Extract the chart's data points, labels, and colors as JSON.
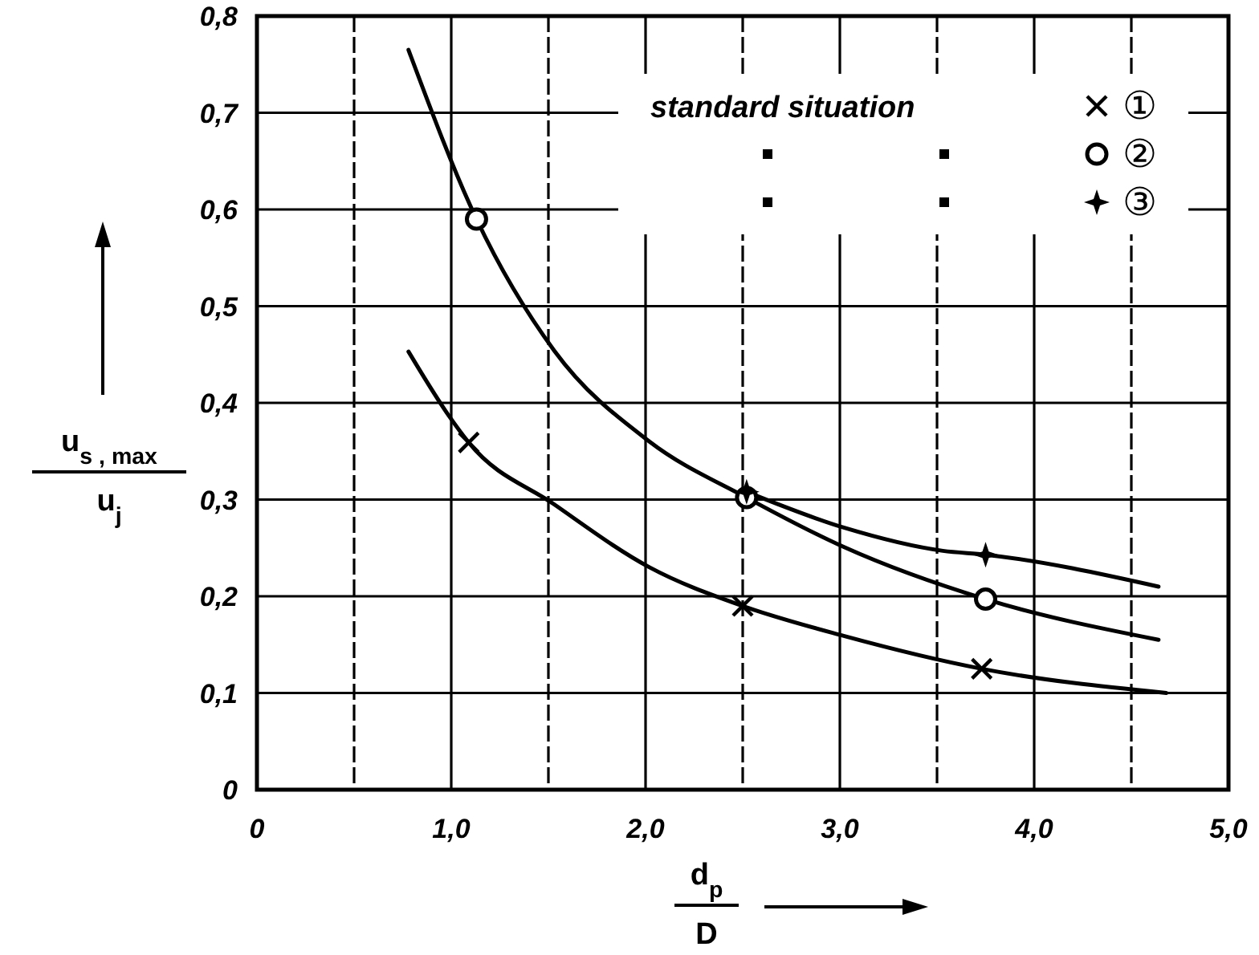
{
  "chart_data": {
    "type": "line",
    "xlabel": "d$_{p}$\nD",
    "ylabel": "u$_{s , max}$\nu$_{j}$",
    "xlim": [
      0,
      5
    ],
    "ylim": [
      0,
      0.8
    ],
    "xticks": [
      0,
      {
        "value": 0.5,
        "label": null
      },
      {
        "value": 1,
        "label": "1,0"
      },
      {
        "value": 1.5,
        "label": null
      },
      {
        "value": 2,
        "label": "2,0"
      },
      {
        "value": 2.5,
        "label": null
      },
      {
        "value": 3,
        "label": "3,0"
      },
      {
        "value": 3.5,
        "label": null
      },
      {
        "value": 4,
        "label": "4,0"
      },
      {
        "value": 4.5,
        "label": null
      },
      {
        "value": 5,
        "label": "5,0"
      }
    ],
    "yticks": [
      0,
      {
        "value": 0.1,
        "label": "0,1"
      },
      {
        "value": 0.2,
        "label": "0,2"
      },
      {
        "value": 0.3,
        "label": "0,3"
      },
      {
        "value": 0.4,
        "label": "0,4"
      },
      {
        "value": 0.5,
        "label": "0,5"
      },
      {
        "value": 0.6,
        "label": "0,6"
      },
      {
        "value": 0.7,
        "label": "0,7"
      },
      {
        "value": 0.8,
        "label": "0,8"
      }
    ],
    "grid": true,
    "legend": "top right",
    "marker": "none",
    "annotations": [
      "standard situation"
    ],
    "series": [
      {
        "type": "line",
        "color": "#000000",
        "x": [
          0.78,
          0.99,
          1.09,
          1.53,
          2.02,
          2.5,
          3.02,
          3.73,
          4.68
        ],
        "values": [
          0.453,
          0.386,
          0.359,
          0.295,
          0.23,
          0.19,
          0.159,
          0.125,
          0.1
        ]
      },
      {
        "type": "line",
        "color": "#000000",
        "x": [
          0.78,
          1.13,
          1.53,
          2.02,
          2.52,
          3.02,
          3.75,
          4.64
        ],
        "values": [
          0.765,
          0.59,
          0.454,
          0.36,
          0.302,
          0.251,
          0.197,
          0.155
        ]
      },
      {
        "type": "line",
        "color": "#000000",
        "x": [
          2.52,
          3.02,
          3.53,
          3.75,
          4.64
        ],
        "values": [
          0.308,
          0.271,
          0.247,
          0.243,
          0.21
        ]
      },
      {
        "type": "scatter",
        "name": "①",
        "marker": "cross",
        "color": "#000000",
        "x": [
          1.09,
          2.5,
          3.73
        ],
        "values": [
          0.359,
          0.19,
          0.125
        ]
      },
      {
        "type": "scatter",
        "name": "②",
        "marker": "circle",
        "color": "#000000",
        "x": [
          1.13,
          2.52,
          3.75
        ],
        "values": [
          0.59,
          0.302,
          0.197
        ]
      },
      {
        "type": "scatter",
        "name": "③",
        "marker": "star",
        "color": "#000000",
        "x": [
          2.52,
          3.75
        ],
        "values": [
          0.308,
          0.243
        ]
      }
    ]
  }
}
